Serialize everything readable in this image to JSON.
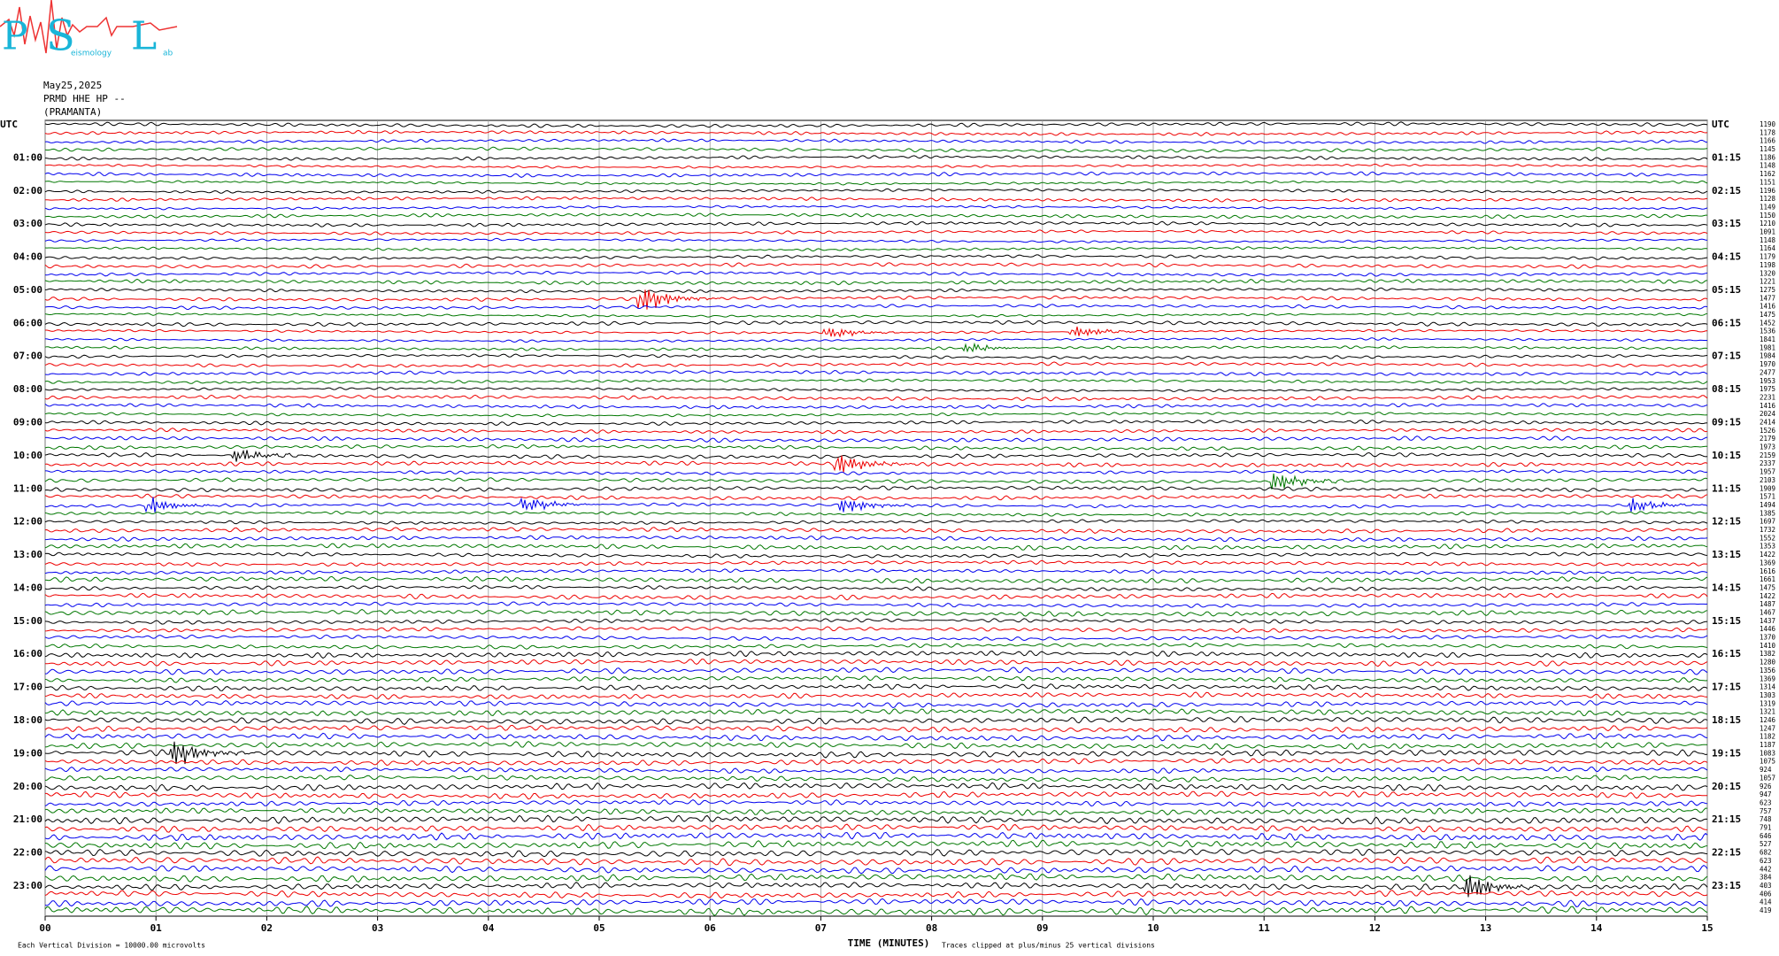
{
  "logo": {
    "letters": [
      "P",
      "S",
      "L"
    ],
    "small": [
      "eismology",
      "ab"
    ]
  },
  "header": {
    "date": "May25,2025",
    "station": "PRMD HHE HP --",
    "location": "(PRAMANTA)"
  },
  "left_labels": [
    "UTC",
    "01:00",
    "02:00",
    "03:00",
    "04:00",
    "05:00",
    "06:00",
    "07:00",
    "08:00",
    "09:00",
    "10:00",
    "11:00",
    "12:00",
    "13:00",
    "14:00",
    "15:00",
    "16:00",
    "17:00",
    "18:00",
    "19:00",
    "20:00",
    "21:00",
    "22:00",
    "23:00"
  ],
  "right_labels": [
    "UTC",
    "01:15",
    "02:15",
    "03:15",
    "04:15",
    "05:15",
    "06:15",
    "07:15",
    "08:15",
    "09:15",
    "10:15",
    "11:15",
    "12:15",
    "13:15",
    "14:15",
    "15:15",
    "16:15",
    "17:15",
    "18:15",
    "19:15",
    "20:15",
    "21:15",
    "22:15",
    "23:15"
  ],
  "trace_values": [
    1190,
    1178,
    1166,
    1145,
    1186,
    1148,
    1162,
    1151,
    1196,
    1128,
    1149,
    1150,
    1210,
    1091,
    1148,
    1164,
    1179,
    1198,
    1320,
    1221,
    1275,
    1477,
    1416,
    1475,
    1452,
    1536,
    1841,
    1981,
    1984,
    1970,
    2477,
    1953,
    1975,
    2231,
    1416,
    2024,
    2414,
    1526,
    2179,
    1973,
    2159,
    2337,
    1957,
    2103,
    1909,
    1571,
    1494,
    1385,
    1697,
    1732,
    1552,
    1353,
    1422,
    1369,
    1616,
    1661,
    1475,
    1422,
    1487,
    1467,
    1437,
    1446,
    1370,
    1410,
    1382,
    1280,
    1356,
    1369,
    1314,
    1303,
    1319,
    1321,
    1246,
    1247,
    1182,
    1187,
    1083,
    1075,
    924,
    1057,
    926,
    947,
    623,
    757,
    748,
    791,
    646,
    527,
    682,
    623,
    442,
    384,
    403,
    406,
    414,
    419
  ],
  "x_ticks": [
    "00",
    "01",
    "02",
    "03",
    "04",
    "05",
    "06",
    "07",
    "08",
    "09",
    "10",
    "11",
    "12",
    "13",
    "14",
    "15"
  ],
  "footer": {
    "scale": "Each Vertical Division = 10000.00 microvolts",
    "axis_title": "TIME (MINUTES)",
    "clip_note": "Traces clipped at plus/minus 25 vertical divisions"
  }
}
